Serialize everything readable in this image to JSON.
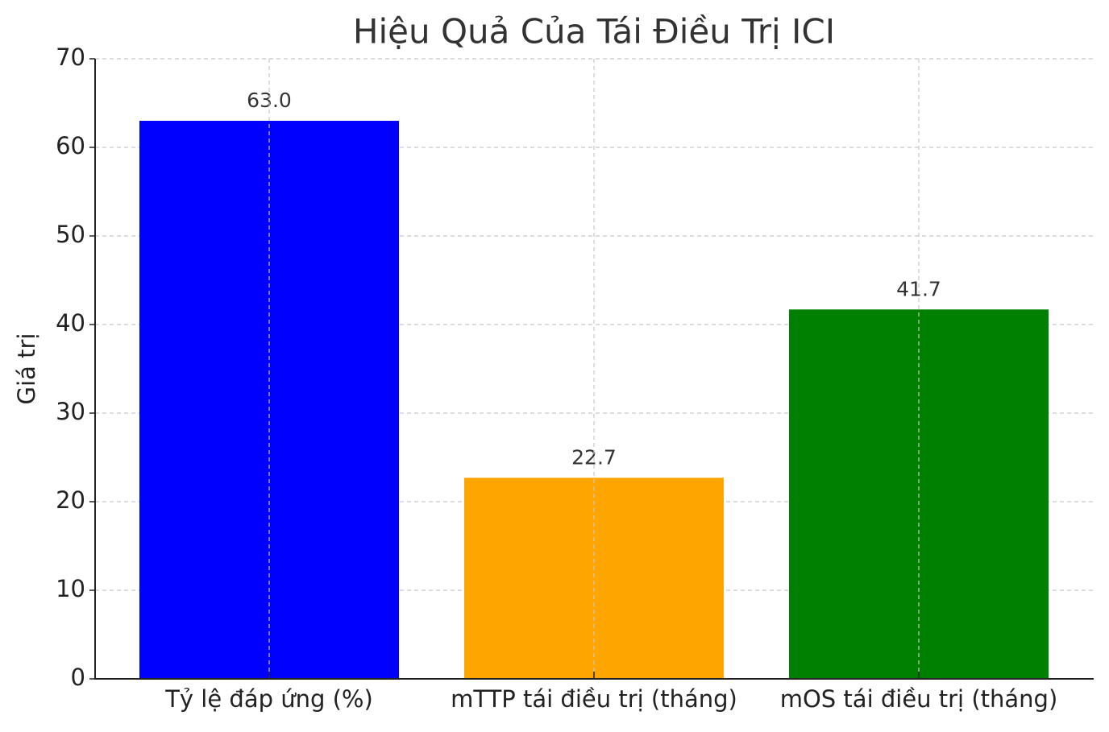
{
  "chart_data": {
    "type": "bar",
    "title": "Hiệu Quả Của Tái Điều Trị ICI",
    "y_label": "Giá trị",
    "categories": [
      "Tỷ lệ đáp ứng (%)",
      "mTTP tái điều trị (tháng)",
      "mOS tái điều trị (tháng)"
    ],
    "values": [
      63.0,
      22.7,
      41.7
    ],
    "value_labels": [
      "63.0",
      "22.7",
      "41.7"
    ],
    "colors": [
      "#0000ff",
      "#ffa500",
      "#008000"
    ],
    "ylim": [
      0,
      70
    ],
    "yticks": [
      0,
      10,
      20,
      30,
      40,
      50,
      60,
      70
    ],
    "grid": true
  }
}
